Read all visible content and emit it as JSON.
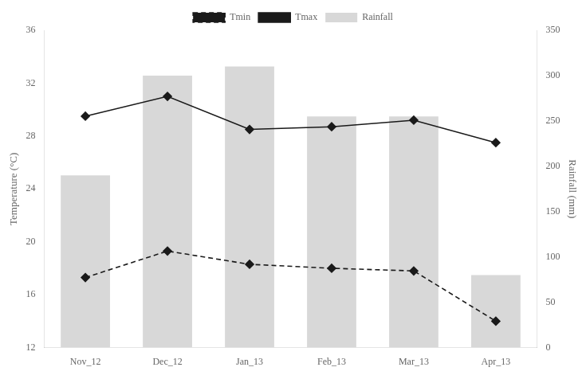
{
  "chart_data": {
    "type": "bar",
    "categories": [
      "Nov_12",
      "Dec_12",
      "Jan_13",
      "Feb_13",
      "Mar_13",
      "Apr_13"
    ],
    "ylabel": "Temperature (°C)",
    "y2label": "Rainfall (mm)",
    "ylim": [
      12,
      36
    ],
    "yticks": [
      12,
      16,
      20,
      24,
      28,
      32,
      36
    ],
    "y2lim": [
      0,
      350
    ],
    "y2ticks": [
      0,
      50,
      100,
      150,
      200,
      250,
      300,
      350
    ],
    "grid": false,
    "legend": "top",
    "series": [
      {
        "name": "Rainfall",
        "type": "bar",
        "axis": "y2",
        "color": "#d8d8d8",
        "values": [
          190,
          300,
          310,
          255,
          255,
          80
        ]
      },
      {
        "name": "Tmin",
        "type": "line",
        "color": "#1a1a1a",
        "marker": "diamond",
        "line_style": "dashed",
        "values": [
          17.3,
          19.3,
          18.3,
          18.0,
          17.8,
          14.0
        ]
      },
      {
        "name": "Tmax",
        "type": "line",
        "color": "#1a1a1a",
        "marker": "diamond",
        "line_style": "solid",
        "values": [
          29.5,
          31.0,
          28.5,
          28.7,
          29.2,
          27.5
        ]
      }
    ]
  }
}
